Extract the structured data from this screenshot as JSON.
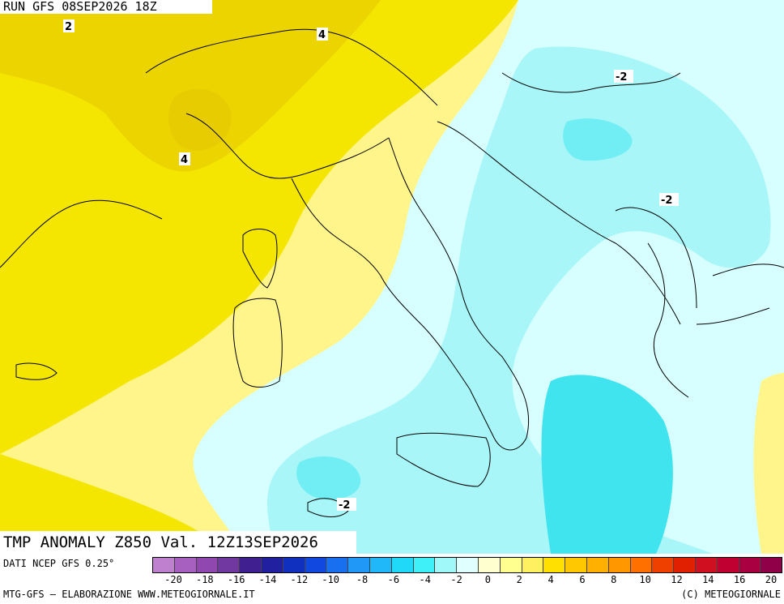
{
  "header": {
    "run": "RUN GFS 08SEP2026 18Z"
  },
  "field": {
    "title": "TMP ANOMALY Z850 Val. 12Z13SEP2026"
  },
  "footer": {
    "source": "DATI NCEP GFS 0.25°",
    "credit_left": "MTG-GFS — ELABORAZIONE WWW.METEOGIORNALE.IT",
    "credit_right": "(C) METEOGIORNALE"
  },
  "contour_labels": [
    {
      "text": "2"
    },
    {
      "text": "4"
    },
    {
      "text": "4"
    },
    {
      "text": "-2"
    },
    {
      "text": "-2"
    },
    {
      "text": "-2"
    }
  ],
  "colorbar": {
    "ticks": [
      "-20",
      "-18",
      "-16",
      "-14",
      "-12",
      "-10",
      "-8",
      "-6",
      "-4",
      "-2",
      "0",
      "2",
      "4",
      "6",
      "8",
      "10",
      "12",
      "14",
      "16",
      "20"
    ],
    "colors": [
      "#c080d0",
      "#a860c0",
      "#9048b0",
      "#7038a0",
      "#402090",
      "#2020a0",
      "#1030c0",
      "#1048e0",
      "#1870f0",
      "#2098f8",
      "#20b8f8",
      "#20d8f8",
      "#40f0f8",
      "#a0f8f8",
      "#e0ffff",
      "#ffffd0",
      "#ffff90",
      "#fff060",
      "#ffe000",
      "#ffc800",
      "#ffb000",
      "#ff9800",
      "#ff7000",
      "#f04000",
      "#e02000",
      "#d01020",
      "#c00030",
      "#a80040",
      "#900048"
    ]
  }
}
